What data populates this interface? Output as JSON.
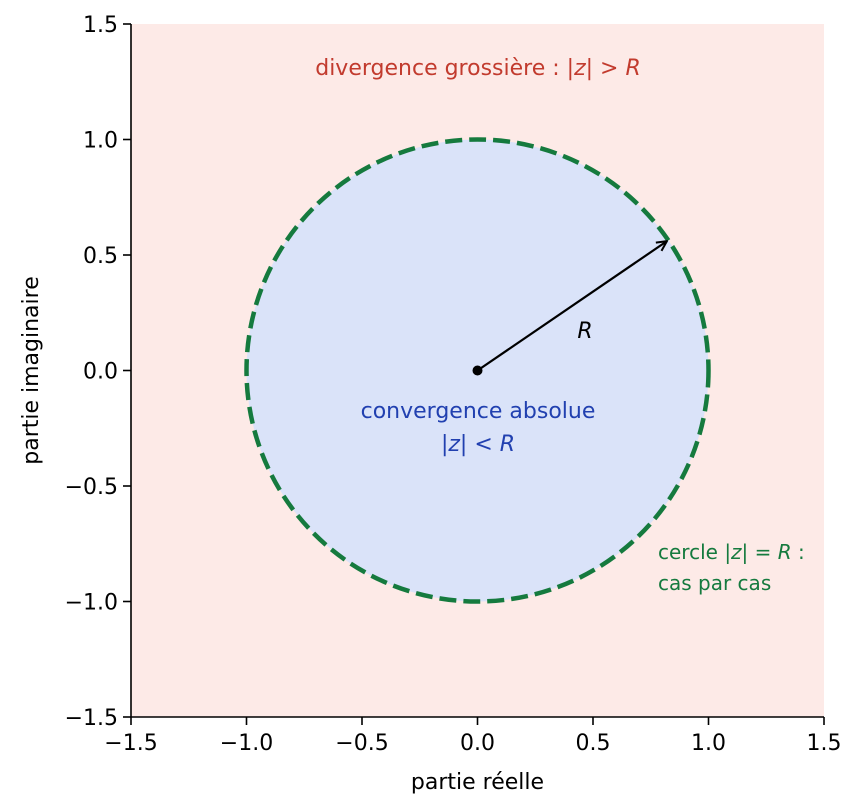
{
  "colors": {
    "outside_fill": "#fdeae7",
    "disk_fill": "#dae3f9",
    "circle_stroke": "#157a3e",
    "divergence_text": "#c23b2e",
    "convergence_text": "#2140b0",
    "boundary_text": "#157a3e",
    "axis": "#000000"
  },
  "axes": {
    "xlabel": "partie réelle",
    "ylabel": "partie imaginaire",
    "xlim": [
      -1.5,
      1.5
    ],
    "ylim": [
      -1.5,
      1.5
    ],
    "x_ticks": [
      {
        "value": -1.5,
        "label": "−1.5"
      },
      {
        "value": -1.0,
        "label": "−1.0"
      },
      {
        "value": -0.5,
        "label": "−0.5"
      },
      {
        "value": 0.0,
        "label": "0.0"
      },
      {
        "value": 0.5,
        "label": "0.5"
      },
      {
        "value": 1.0,
        "label": "1.0"
      },
      {
        "value": 1.5,
        "label": "1.5"
      }
    ],
    "y_ticks": [
      {
        "value": -1.5,
        "label": "−1.5"
      },
      {
        "value": -1.0,
        "label": "−1.0"
      },
      {
        "value": -0.5,
        "label": "−0.5"
      },
      {
        "value": 0.0,
        "label": "0.0"
      },
      {
        "value": 0.5,
        "label": "0.5"
      },
      {
        "value": 1.0,
        "label": "1.0"
      },
      {
        "value": 1.5,
        "label": "1.5"
      }
    ]
  },
  "diagram": {
    "circle": {
      "cx": 0,
      "cy": 0,
      "r": 1
    },
    "radius_arrow": {
      "from": [
        0,
        0
      ],
      "to": [
        0.82,
        0.56
      ]
    },
    "radius_label": "R",
    "divergence": {
      "text": "divergence grossière : ",
      "math_1": "|z|",
      "op": " > ",
      "math_2": "R"
    },
    "convergence": {
      "line1": "convergence absolue",
      "math_1": "|z|",
      "op": " < ",
      "math_2": "R"
    },
    "boundary": {
      "line1_text": "cercle ",
      "math_1": "|z|",
      "op": " = ",
      "math_2": "R",
      "line1_end": " :",
      "line2": "cas par cas"
    }
  }
}
